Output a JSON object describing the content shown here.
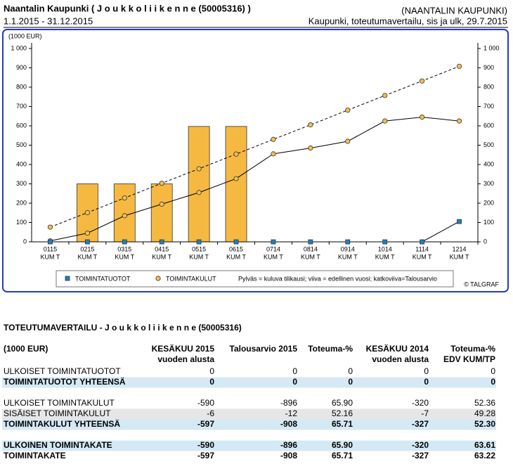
{
  "header": {
    "title": "Naantalin Kaupunki ( J o u k k o l i i k e n n e (50005316) )",
    "period": "1.1.2015 - 31.12.2015",
    "organization": "(NAANTALIN KAUPUNKI)",
    "report": "Kaupunki, toteutumavertailu, sis ja ulk, 29.7.2015"
  },
  "chart_data": {
    "type": "bar",
    "y_label": "(1000 EUR)",
    "categories": [
      "0115",
      "0215",
      "0315",
      "0415",
      "0515",
      "0615",
      "0714",
      "0814",
      "0914",
      "1014",
      "1114",
      "1214"
    ],
    "category_sublabel": "KUM T",
    "series": [
      {
        "style": "bar",
        "color": "#f5b942",
        "values": [
          null,
          300,
          300,
          300,
          597,
          597,
          null,
          null,
          null,
          null,
          null,
          null
        ]
      },
      {
        "style": "line",
        "marker": "circle",
        "color": "#f2c14e",
        "values": [
          5,
          45,
          135,
          195,
          255,
          327,
          455,
          485,
          520,
          625,
          645,
          625
        ]
      },
      {
        "style": "dashed",
        "marker": "circle",
        "color": "#f2c14e",
        "values": [
          76,
          151,
          227,
          303,
          378,
          454,
          530,
          605,
          681,
          757,
          832,
          908
        ]
      },
      {
        "style": "line",
        "marker": "square",
        "color": "#1f82c0",
        "values": [
          0,
          0,
          0,
          0,
          0,
          0,
          0,
          0,
          0,
          0,
          0,
          105
        ]
      }
    ],
    "ylim": [
      0,
      1000
    ],
    "yticks": [
      0,
      100,
      200,
      300,
      400,
      500,
      600,
      700,
      800,
      900,
      {
        "value": 1000,
        "label": "1 000"
      }
    ],
    "legend": [
      {
        "label": "TOIMINTATUOTOT",
        "marker": "square",
        "color": "#1f82c0"
      },
      {
        "label": "TOIMINTAKULUT",
        "marker": "circle",
        "color": "#f2c14e"
      }
    ],
    "legend_note": "Pylväs = kuluva tilikausi; viiva = edellinen vuosi; katkoviiva=Talousarvio",
    "credit": "© TALGRAF"
  },
  "table": {
    "title": "TOTEUTUMAVERTAILU - J o u k k o l i i k e n n e (50005316)",
    "header": [
      [
        "(1000 EUR)"
      ],
      [
        "KESÄKUU 2015",
        "vuoden alusta"
      ],
      [
        "Talousarvio 2015"
      ],
      [
        "Toteuma-%"
      ],
      [
        "KESÄKUU 2014",
        "vuoden alusta"
      ],
      [
        "Toteuma-%",
        "EDV KUM/TP"
      ]
    ],
    "sections": [
      [
        {
          "style": "plain",
          "cells": [
            "ULKOISET TOIMINTATUOTOT",
            "0",
            "0",
            "0",
            "0",
            "0"
          ]
        },
        {
          "style": "total",
          "cells": [
            "TOIMINTATUOTOT YHTEENSÄ",
            "0",
            "0",
            "0",
            "0",
            "0"
          ]
        }
      ],
      [
        {
          "style": "plain",
          "cells": [
            "ULKOISET TOIMINTAKULUT",
            "-590",
            "-896",
            "65.90",
            "-320",
            "52.36"
          ]
        },
        {
          "style": "shaded",
          "cells": [
            "SISÄISET TOIMINTAKULUT",
            "-6",
            "-12",
            "52.16",
            "-7",
            "49.28"
          ]
        },
        {
          "style": "total",
          "cells": [
            "TOIMINTAKULUT YHTEENSÄ",
            "-597",
            "-908",
            "65.71",
            "-327",
            "52.30"
          ]
        }
      ],
      [
        {
          "style": "total",
          "cells": [
            "ULKOINEN TOIMINTAKATE",
            "-590",
            "-896",
            "65.90",
            "-320",
            "63.61"
          ]
        },
        {
          "style": "bold",
          "cells": [
            "TOIMINTAKATE",
            "-597",
            "-908",
            "65.71",
            "-327",
            "63.22"
          ]
        }
      ]
    ]
  }
}
